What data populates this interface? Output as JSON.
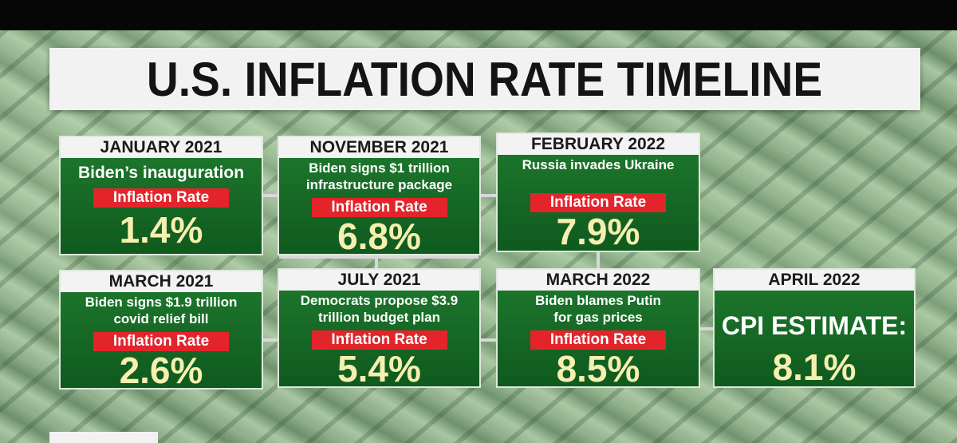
{
  "title": "U.S. INFLATION RATE TIMELINE",
  "colors": {
    "card_green": "#1a6f2a",
    "label_red": "#e3242b",
    "value_cream": "#f6efb0"
  },
  "cards": [
    {
      "date": "JANUARY 2021",
      "event": "Biden’s inauguration",
      "label": "Inflation Rate",
      "value": "1.4%"
    },
    {
      "date": "NOVEMBER 2021",
      "event": "Biden signs $1 trillion infrastructure package",
      "label": "Inflation Rate",
      "value": "6.8%"
    },
    {
      "date": "FEBRUARY 2022",
      "event": "Russia invades Ukraine",
      "label": "Inflation Rate",
      "value": "7.9%"
    },
    {
      "date": "MARCH 2021",
      "event": "Biden signs $1.9 trillion covid relief bill",
      "label": "Inflation Rate",
      "value": "2.6%"
    },
    {
      "date": "JULY 2021",
      "event": "Democrats propose $3.9 trillion budget plan",
      "label": "Inflation Rate",
      "value": "5.4%"
    },
    {
      "date": "MARCH 2022",
      "event": "Biden blames Putin for gas prices",
      "label": "Inflation Rate",
      "value": "8.5%"
    },
    {
      "date": "APRIL 2022",
      "event": "CPI ESTIMATE:",
      "value": "8.1%"
    }
  ]
}
